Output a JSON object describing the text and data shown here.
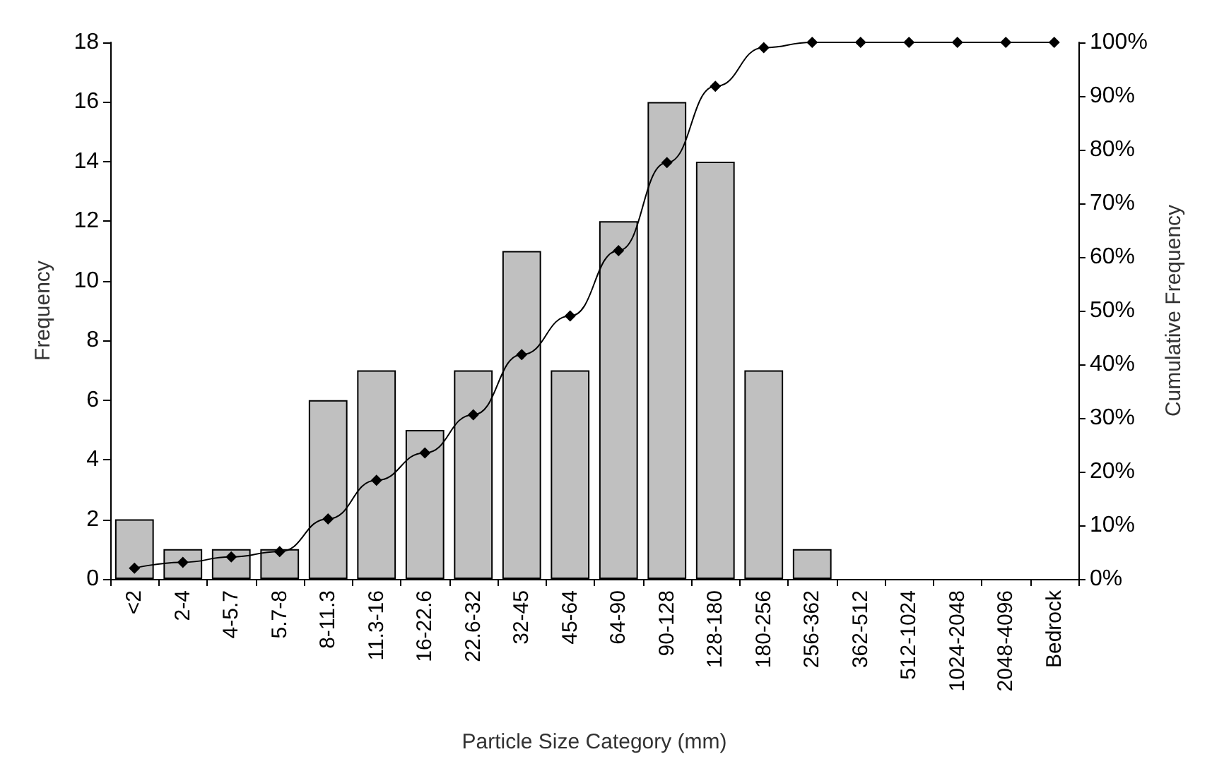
{
  "chart_data": {
    "type": "bar",
    "xlabel": "Particle Size Category (mm)",
    "ylabel": "Frequency",
    "y2label": "Cumulative Frequency",
    "categories": [
      "<2",
      "2-4",
      "4-5.7",
      "5.7-8",
      "8-11.3",
      "11.3-16",
      "16-22.6",
      "22.6-32",
      "32-45",
      "45-64",
      "64-90",
      "90-128",
      "128-180",
      "180-256",
      "256-362",
      "362-512",
      "512-1024",
      "1024-2048",
      "2048-4096",
      "Bedrock"
    ],
    "series": [
      {
        "color": "#c0c0c0",
        "values": [
          2,
          1,
          1,
          1,
          6,
          7,
          5,
          7,
          11,
          7,
          12,
          16,
          14,
          7,
          1,
          0,
          0,
          0,
          0,
          0
        ]
      },
      {
        "type": "line",
        "axis": "y2",
        "color": "#000000",
        "marker": "diamond",
        "line_style": "solid",
        "values": [
          2.0,
          3.1,
          4.1,
          5.1,
          11.2,
          18.4,
          23.5,
          30.6,
          41.8,
          49.0,
          61.2,
          77.6,
          91.8,
          99.0,
          100,
          100,
          100,
          100,
          100,
          100
        ]
      }
    ],
    "ylim": [
      0,
      18
    ],
    "yticks": [
      0,
      2,
      4,
      6,
      8,
      10,
      12,
      14,
      16,
      18
    ],
    "y2lim": [
      0,
      100
    ],
    "y2ticks": [
      {
        "value": 0,
        "label": "0%"
      },
      {
        "value": 10,
        "label": "10%"
      },
      {
        "value": 20,
        "label": "20%"
      },
      {
        "value": 30,
        "label": "30%"
      },
      {
        "value": 40,
        "label": "40%"
      },
      {
        "value": 50,
        "label": "50%"
      },
      {
        "value": 60,
        "label": "60%"
      },
      {
        "value": 70,
        "label": "70%"
      },
      {
        "value": 80,
        "label": "80%"
      },
      {
        "value": 90,
        "label": "90%"
      },
      {
        "value": 100,
        "label": "100%"
      }
    ],
    "grid": false
  }
}
